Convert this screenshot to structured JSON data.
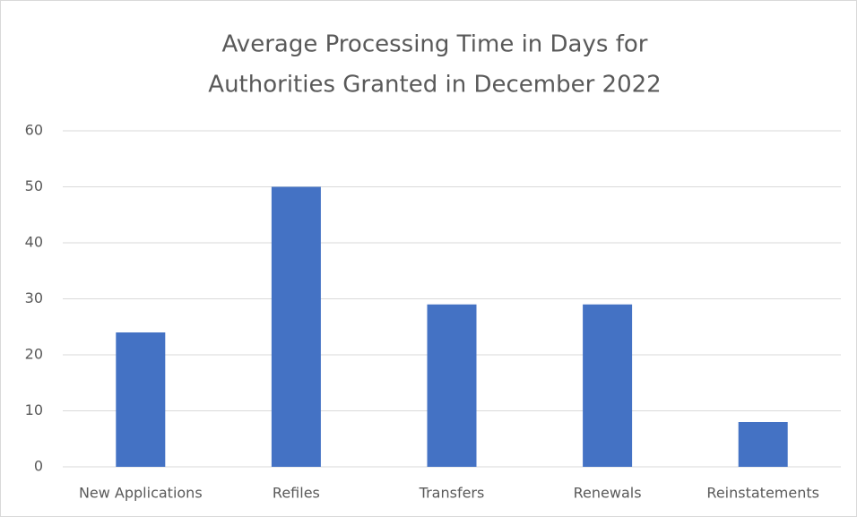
{
  "chart_data": {
    "type": "bar",
    "title": [
      "Average Processing Time in Days for",
      "Authorities Granted in December 2022"
    ],
    "categories": [
      "New Applications",
      "Refiles",
      "Transfers",
      "Renewals",
      "Reinstatements"
    ],
    "values": [
      24,
      50,
      29,
      29,
      8
    ],
    "color": "#4472c4",
    "ylim": [
      0,
      60
    ],
    "yticks": [
      0,
      10,
      20,
      30,
      40,
      50,
      60
    ],
    "grid": true
  }
}
